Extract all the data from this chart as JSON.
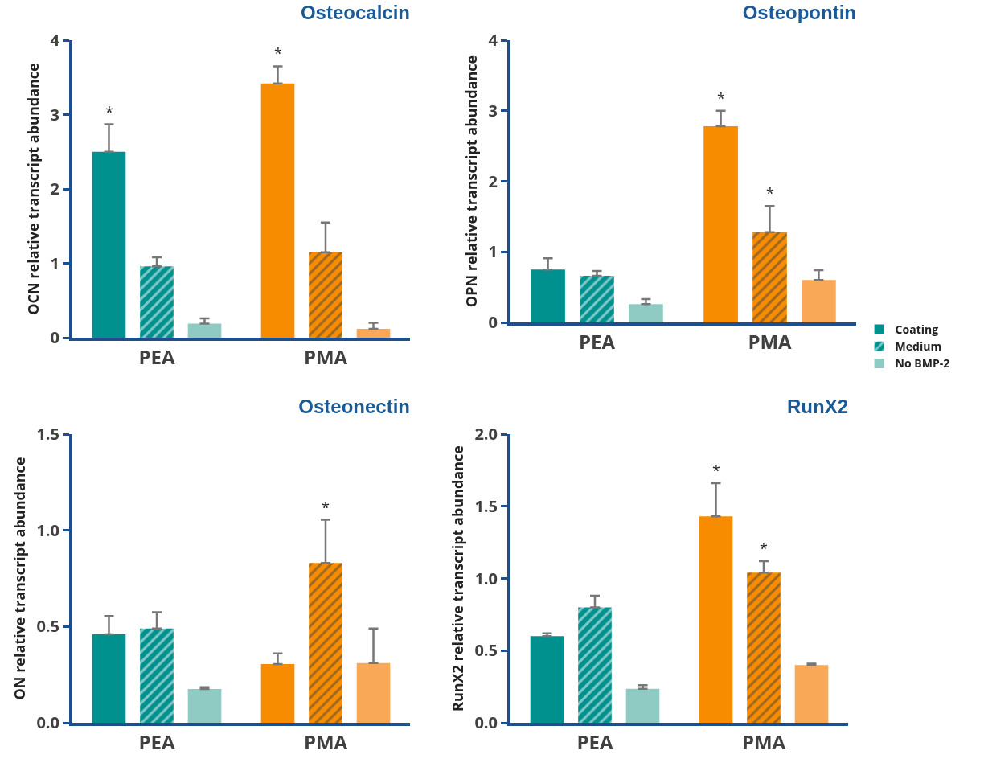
{
  "chart_data": [
    {
      "type": "bar",
      "title": "Osteocalcin",
      "ylabel": "OCN relative transcript abundance",
      "categories": [
        "PEA",
        "PMA"
      ],
      "ylim": [
        0,
        4
      ],
      "yticks": [
        0,
        1,
        2,
        3,
        4
      ],
      "grid": false,
      "legend": false,
      "series": [
        {
          "colors": [
            "#00918e",
            "#f78c00"
          ],
          "values": [
            2.5,
            3.42
          ],
          "errors": [
            [
              2.5,
              2.87
            ],
            [
              3.42,
              3.65
            ]
          ],
          "value_labels": [
            "*",
            "*"
          ]
        },
        {
          "colors": [
            "#00918e",
            "#f78c00"
          ],
          "values": [
            0.96,
            1.15
          ],
          "errors": [
            [
              0.96,
              1.08
            ],
            [
              1.15,
              1.55
            ]
          ]
        },
        {
          "colors": [
            "#8fcbc2",
            "#f9a857"
          ],
          "values": [
            0.19,
            0.12
          ],
          "errors": [
            [
              0.19,
              0.26
            ],
            [
              0.12,
              0.2
            ]
          ]
        }
      ]
    },
    {
      "type": "bar",
      "title": "Osteopontin",
      "ylabel": "OPN relative transcript abundance",
      "categories": [
        "PEA",
        "PMA"
      ],
      "ylim": [
        0,
        4
      ],
      "yticks": [
        0,
        1,
        2,
        3,
        4
      ],
      "grid": false,
      "legend": "right",
      "series": [
        {
          "name": "Coating",
          "colors": [
            "#00918e",
            "#f78c00"
          ],
          "values": [
            0.75,
            2.78
          ],
          "errors": [
            [
              0.75,
              0.91
            ],
            [
              2.78,
              3.0
            ]
          ],
          "value_labels": [
            null,
            "*"
          ]
        },
        {
          "name": "Medium",
          "colors": [
            "#00918e",
            "#f78c00"
          ],
          "values": [
            0.66,
            1.28
          ],
          "errors": [
            [
              0.66,
              0.73
            ],
            [
              1.28,
              1.65
            ]
          ],
          "value_labels": [
            null,
            "*"
          ]
        },
        {
          "name": "No BMP-2",
          "colors": [
            "#8fcbc2",
            "#f9a857"
          ],
          "values": [
            0.26,
            0.6
          ],
          "errors": [
            [
              0.26,
              0.33
            ],
            [
              0.6,
              0.74
            ]
          ]
        }
      ]
    },
    {
      "type": "bar",
      "title": "Osteonectin",
      "ylabel": "ON relative transcript abundance",
      "categories": [
        "PEA",
        "PMA"
      ],
      "ylim": [
        0,
        1.5
      ],
      "yticks": [
        {
          "value": 0,
          "label": "0.0"
        },
        0.5,
        {
          "value": 1,
          "label": "1.0"
        },
        1.5
      ],
      "grid": false,
      "legend": false,
      "series": [
        {
          "colors": [
            "#00918e",
            "#f78c00"
          ],
          "values": [
            0.46,
            0.305
          ],
          "errors": [
            [
              0.46,
              0.555
            ],
            [
              0.305,
              0.36
            ]
          ]
        },
        {
          "colors": [
            "#00918e",
            "#f78c00"
          ],
          "values": [
            0.49,
            0.83
          ],
          "errors": [
            [
              0.49,
              0.575
            ],
            [
              0.83,
              1.055
            ]
          ],
          "value_labels": [
            null,
            "*"
          ]
        },
        {
          "colors": [
            "#8fcbc2",
            "#f9a857"
          ],
          "values": [
            0.175,
            0.31
          ],
          "errors": [
            [
              0.175,
              0.185
            ],
            [
              0.31,
              0.49
            ]
          ]
        }
      ]
    },
    {
      "type": "bar",
      "title": "RunX2",
      "ylabel": "RunX2 relative transcript abundance",
      "categories": [
        "PEA",
        "PMA"
      ],
      "ylim": [
        0,
        2
      ],
      "yticks": [
        {
          "value": 0,
          "label": "0.0"
        },
        0.5,
        {
          "value": 1,
          "label": "1.0"
        },
        1.5,
        {
          "value": 2,
          "label": "2.0"
        }
      ],
      "grid": false,
      "legend": false,
      "series": [
        {
          "colors": [
            "#00918e",
            "#f78c00"
          ],
          "values": [
            0.6,
            1.43
          ],
          "errors": [
            [
              0.6,
              0.62
            ],
            [
              1.43,
              1.66
            ]
          ],
          "value_labels": [
            null,
            "*"
          ]
        },
        {
          "colors": [
            "#00918e",
            "#f78c00"
          ],
          "values": [
            0.8,
            1.04
          ],
          "errors": [
            [
              0.8,
              0.88
            ],
            [
              1.04,
              1.12
            ]
          ],
          "value_labels": [
            null,
            "*"
          ]
        },
        {
          "colors": [
            "#8fcbc2",
            "#f9a857"
          ],
          "values": [
            0.235,
            0.4
          ],
          "errors": [
            [
              0.235,
              0.26
            ],
            [
              0.4,
              0.41
            ]
          ]
        }
      ]
    }
  ]
}
